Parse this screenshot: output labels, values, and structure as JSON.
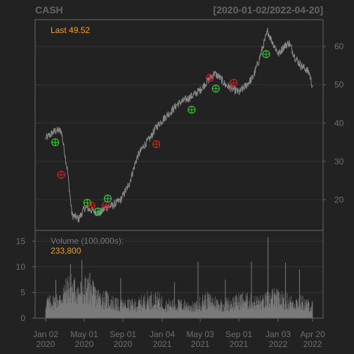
{
  "header": {
    "symbol": "CASH",
    "date_range": "[2020-01-02/2022-04-20]"
  },
  "price_panel": {
    "last_label": "Last 49.52"
  },
  "volume_panel": {
    "label": "Volume (100,000s):",
    "value": "233,800"
  },
  "colors": {
    "background": "#222222",
    "panel_border": "#666666",
    "grid": "#333333",
    "price_line": "#888888",
    "volume_bar": "#7a7a7a",
    "buy_marker": "#33cc33",
    "sell_marker": "#cc2222",
    "accent": "#f0a020"
  },
  "chart_data": [
    {
      "type": "line",
      "series": [
        {
          "name": "CASH",
          "x": [
            "2020-01-02",
            "2020-02-01",
            "2020-02-20",
            "2020-03-10",
            "2020-03-25",
            "2020-04-15",
            "2020-05-05",
            "2020-06-01",
            "2020-06-20",
            "2020-07-10",
            "2020-08-01",
            "2020-08-25",
            "2020-09-20",
            "2020-10-15",
            "2020-11-05",
            "2020-11-25",
            "2020-12-15",
            "2021-01-05",
            "2021-01-30",
            "2021-02-20",
            "2021-03-15",
            "2021-04-05",
            "2021-04-30",
            "2021-05-25",
            "2021-06-15",
            "2021-07-01",
            "2021-07-20",
            "2021-08-10",
            "2021-09-01",
            "2021-09-25",
            "2021-10-15",
            "2021-11-01",
            "2021-11-15",
            "2021-11-30",
            "2021-12-10",
            "2022-01-03",
            "2022-01-20",
            "2022-02-05",
            "2022-02-25",
            "2022-03-15",
            "2022-03-31",
            "2022-04-10",
            "2022-04-20"
          ],
          "y": [
            36,
            38,
            38,
            28,
            16,
            15,
            18,
            17,
            16.5,
            18,
            18.5,
            20,
            24,
            31,
            34,
            36,
            39,
            41,
            43,
            45,
            46,
            47,
            48.5,
            51,
            53,
            52,
            50,
            49,
            48,
            50,
            52,
            56,
            60,
            64,
            62,
            58,
            60,
            61,
            57,
            55,
            54,
            53,
            49.52
          ]
        }
      ],
      "ylim": [
        12,
        67
      ],
      "yticks": [
        20,
        30,
        40,
        50,
        60
      ],
      "x_ticks": [
        {
          "line1": "Jan 02",
          "line2": "2020"
        },
        {
          "line1": "May 01",
          "line2": "2020"
        },
        {
          "line1": "Sep 01",
          "line2": "2020"
        },
        {
          "line1": "Jan 04",
          "line2": "2021"
        },
        {
          "line1": "May 03",
          "line2": "2021"
        },
        {
          "line1": "Sep 01",
          "line2": "2021"
        },
        {
          "line1": "Jan 03",
          "line2": "2022"
        },
        {
          "line1": "Apr 20",
          "line2": "2022"
        }
      ],
      "markers": [
        {
          "type": "buy",
          "x": "2020-02-01",
          "y": 35
        },
        {
          "type": "sell",
          "x": "2020-02-20",
          "y": 26.5
        },
        {
          "type": "buy",
          "x": "2020-05-12",
          "y": 19.2
        },
        {
          "type": "sell",
          "x": "2020-05-25",
          "y": 18.5
        },
        {
          "type": "buy",
          "x": "2020-06-15",
          "y": 16.9
        },
        {
          "type": "sell",
          "x": "2020-07-10",
          "y": 18.6
        },
        {
          "type": "buy",
          "x": "2020-07-15",
          "y": 20.3
        },
        {
          "type": "sell",
          "x": "2020-12-15",
          "y": 34.5
        },
        {
          "type": "buy",
          "x": "2021-04-05",
          "y": 43.5
        },
        {
          "type": "sell",
          "x": "2021-06-01",
          "y": 51.8
        },
        {
          "type": "buy",
          "x": "2021-06-20",
          "y": 49
        },
        {
          "type": "sell",
          "x": "2021-08-15",
          "y": 50.5
        },
        {
          "type": "buy",
          "x": "2021-11-25",
          "y": 58
        }
      ],
      "grid": true
    },
    {
      "type": "bar",
      "title": "Volume (100,000s):",
      "ylim": [
        0,
        16
      ],
      "yticks": [
        0,
        5,
        10,
        15
      ],
      "x": [
        "2020-01-15",
        "2020-02-15",
        "2020-03-15",
        "2020-04-15",
        "2020-05-15",
        "2020-06-15",
        "2020-07-15",
        "2020-08-15",
        "2020-09-15",
        "2020-10-15",
        "2020-11-15",
        "2020-12-15",
        "2021-01-15",
        "2021-02-15",
        "2021-03-15",
        "2021-04-15",
        "2021-05-15",
        "2021-06-15",
        "2021-07-15",
        "2021-08-15",
        "2021-09-15",
        "2021-10-15",
        "2021-11-15",
        "2021-12-15",
        "2022-01-15",
        "2022-02-15",
        "2022-03-15",
        "2022-04-15"
      ],
      "values": [
        3.0,
        3.5,
        6.0,
        5.0,
        5.5,
        4.0,
        3.5,
        2.5,
        2.5,
        2.5,
        3.5,
        3.5,
        2.5,
        2.5,
        2.5,
        2.0,
        3.5,
        3.0,
        2.5,
        3.0,
        3.5,
        3.0,
        3.0,
        4.0,
        3.5,
        3.0,
        3.0,
        2.3
      ],
      "spikes": [
        {
          "x": "2020-02-03",
          "value": 7.5
        },
        {
          "x": "2020-03-20",
          "value": 10.5
        },
        {
          "x": "2020-04-25",
          "value": 11.3
        },
        {
          "x": "2020-05-20",
          "value": 8.8
        },
        {
          "x": "2020-08-25",
          "value": 7.8
        },
        {
          "x": "2021-02-10",
          "value": 7.0
        },
        {
          "x": "2021-04-25",
          "value": 11.0
        },
        {
          "x": "2021-07-20",
          "value": 7.5
        },
        {
          "x": "2021-10-10",
          "value": 11.0
        },
        {
          "x": "2021-12-01",
          "value": 15.8
        },
        {
          "x": "2022-01-25",
          "value": 10.8
        },
        {
          "x": "2022-03-10",
          "value": 9.5
        }
      ]
    }
  ]
}
